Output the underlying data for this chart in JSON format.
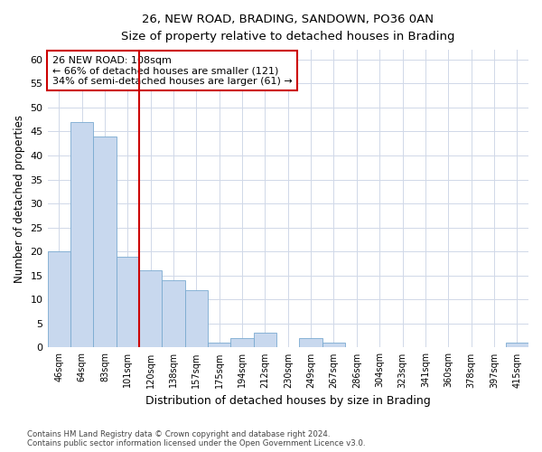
{
  "title": "26, NEW ROAD, BRADING, SANDOWN, PO36 0AN",
  "subtitle": "Size of property relative to detached houses in Brading",
  "xlabel": "Distribution of detached houses by size in Brading",
  "ylabel": "Number of detached properties",
  "bar_values": [
    20,
    47,
    44,
    19,
    16,
    14,
    12,
    1,
    2,
    3,
    0,
    2,
    1,
    0,
    0,
    0,
    0,
    0,
    0,
    0,
    1
  ],
  "categories": [
    "46sqm",
    "64sqm",
    "83sqm",
    "101sqm",
    "120sqm",
    "138sqm",
    "157sqm",
    "175sqm",
    "194sqm",
    "212sqm",
    "230sqm",
    "249sqm",
    "267sqm",
    "286sqm",
    "304sqm",
    "323sqm",
    "341sqm",
    "360sqm",
    "378sqm",
    "397sqm",
    "415sqm"
  ],
  "bar_color": "#c8d8ee",
  "bar_edge_color": "#7aaad0",
  "vline_x": 3.5,
  "vline_color": "#cc0000",
  "annotation_text": "26 NEW ROAD: 108sqm\n← 66% of detached houses are smaller (121)\n34% of semi-detached houses are larger (61) →",
  "annotation_box_edge": "#cc0000",
  "ylim": [
    0,
    62
  ],
  "yticks": [
    0,
    5,
    10,
    15,
    20,
    25,
    30,
    35,
    40,
    45,
    50,
    55,
    60
  ],
  "footer_line1": "Contains HM Land Registry data © Crown copyright and database right 2024.",
  "footer_line2": "Contains public sector information licensed under the Open Government Licence v3.0.",
  "background_color": "#ffffff",
  "plot_bg_color": "#ffffff",
  "grid_color": "#d0d8e8"
}
